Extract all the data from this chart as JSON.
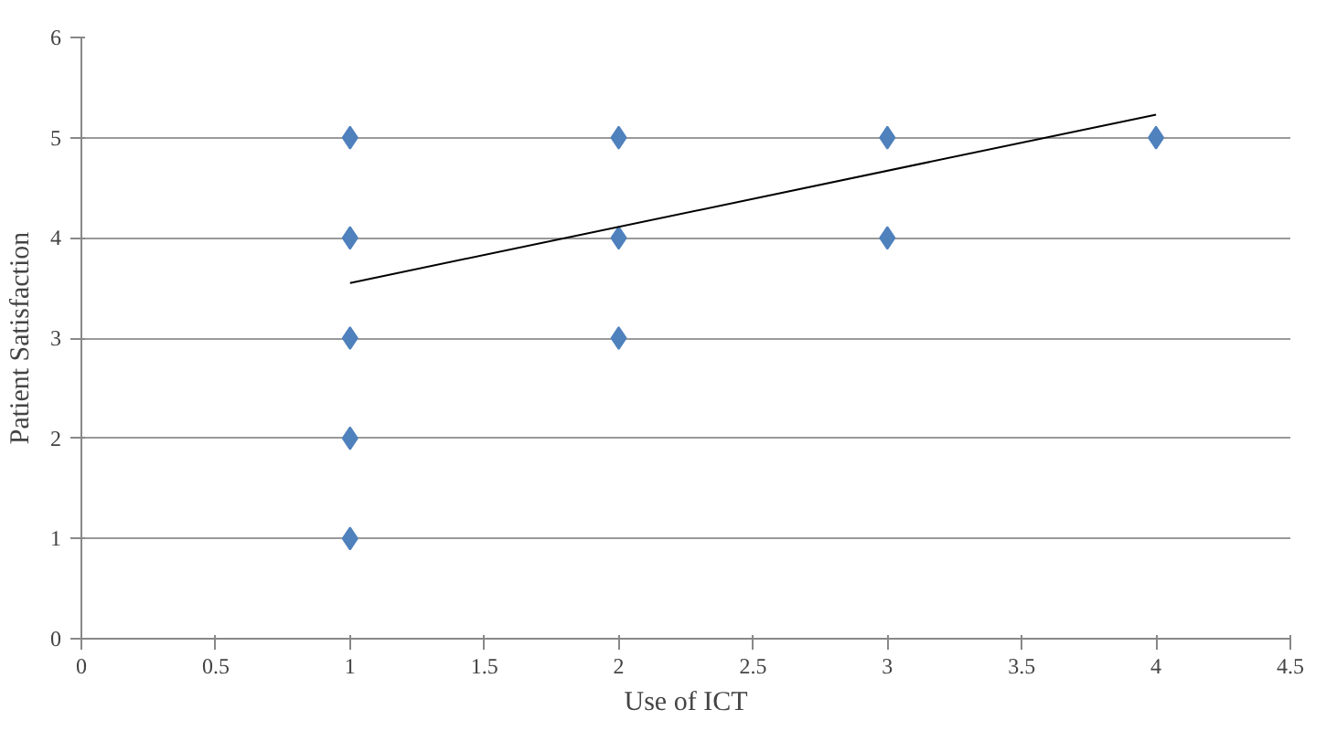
{
  "chart_data": {
    "type": "scatter",
    "xlabel": "Use of ICT",
    "ylabel": "Patient Satisfaction",
    "xlim": [
      0,
      4.5
    ],
    "xticks": [
      0,
      0.5,
      1,
      1.5,
      2,
      2.5,
      3,
      3.5,
      4,
      4.5
    ],
    "ylim": [
      0,
      6
    ],
    "yticks": [
      0,
      1,
      2,
      3,
      4,
      5,
      6
    ],
    "grid": "y",
    "series": [
      {
        "marker": "diamond",
        "color": "#4f81bd",
        "x": [
          1,
          1,
          1,
          1,
          1,
          2,
          2,
          2,
          3,
          3,
          4
        ],
        "values": [
          5,
          4,
          3,
          2,
          1,
          5,
          4,
          3,
          5,
          4,
          5
        ]
      },
      {
        "type": "line",
        "color": "#000000",
        "x": [
          1,
          4
        ],
        "values": [
          3.55,
          5.23
        ]
      }
    ]
  }
}
